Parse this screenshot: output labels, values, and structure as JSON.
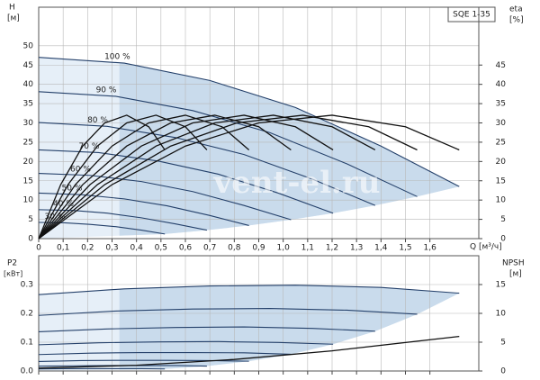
{
  "chart_data": [
    {
      "type": "line",
      "title": "SQE 1-35",
      "x_label": "Q [м³/ч]",
      "y_label": "H",
      "y_unit": "[м]",
      "y2_label": "eta",
      "y2_unit": "[%]",
      "watermark": "vent-el.ru",
      "xlim": [
        0,
        1.8
      ],
      "xticks": [
        0,
        {
          "value": 0.1,
          "label": "0,1"
        },
        {
          "value": 0.2,
          "label": "0,2"
        },
        {
          "value": 0.3,
          "label": "0,3"
        },
        {
          "value": 0.4,
          "label": "0,4"
        },
        {
          "value": 0.5,
          "label": "0,5"
        },
        {
          "value": 0.6,
          "label": "0,6"
        },
        {
          "value": 0.7,
          "label": "0,7"
        },
        {
          "value": 0.8,
          "label": "0,8"
        },
        {
          "value": 0.9,
          "label": "0,9"
        },
        {
          "value": 1,
          "label": "1,0"
        },
        {
          "value": 1.1,
          "label": "1,1"
        },
        {
          "value": 1.2,
          "label": "1,2"
        },
        {
          "value": 1.3,
          "label": "1,3"
        },
        {
          "value": 1.4,
          "label": "1,4"
        },
        {
          "value": 1.5,
          "label": "1,5"
        },
        {
          "value": 1.6,
          "label": "1,6"
        }
      ],
      "ylim": [
        0,
        60
      ],
      "yticks": [
        0,
        5,
        10,
        15,
        20,
        25,
        30,
        35,
        40,
        45,
        50
      ],
      "y2lim": [
        0,
        60
      ],
      "y2ticks": [
        0,
        5,
        10,
        15,
        20,
        25,
        30,
        35,
        40,
        45
      ],
      "grid": true,
      "fill_color": "#c9dbec",
      "fill_light_color": "#e6eff8",
      "series": [
        {
          "name": "100 %",
          "color": "#24406a",
          "x": [
            0,
            0.35,
            0.7,
            1.05,
            1.4,
            1.72
          ],
          "values": [
            47,
            45.5,
            41,
            34,
            24,
            13.5
          ]
        },
        {
          "name": "90 %",
          "color": "#24406a",
          "x": [
            0,
            0.315,
            0.63,
            0.945,
            1.26,
            1.548
          ],
          "values": [
            38.1,
            36.9,
            33.2,
            27.5,
            19.4,
            10.9
          ]
        },
        {
          "name": "80 %",
          "color": "#24406a",
          "x": [
            0,
            0.28,
            0.56,
            0.84,
            1.12,
            1.376
          ],
          "values": [
            30.1,
            29.1,
            26.2,
            21.8,
            15.4,
            8.6
          ]
        },
        {
          "name": "70 %",
          "color": "#24406a",
          "x": [
            0,
            0.245,
            0.49,
            0.735,
            0.98,
            1.204
          ],
          "values": [
            23,
            22.3,
            20.1,
            16.7,
            11.8,
            6.6
          ]
        },
        {
          "name": "60 %",
          "color": "#24406a",
          "x": [
            0,
            0.21,
            0.42,
            0.63,
            0.84,
            1.032
          ],
          "values": [
            16.9,
            16.4,
            14.8,
            12.2,
            8.6,
            4.9
          ]
        },
        {
          "name": "50 %",
          "color": "#24406a",
          "x": [
            0,
            0.175,
            0.35,
            0.525,
            0.7,
            0.86
          ],
          "values": [
            11.8,
            11.4,
            10.3,
            8.5,
            6,
            3.4
          ]
        },
        {
          "name": "40 %",
          "color": "#24406a",
          "x": [
            0,
            0.14,
            0.28,
            0.42,
            0.56,
            0.688
          ],
          "values": [
            7.5,
            7.3,
            6.6,
            5.4,
            3.8,
            2.2
          ]
        },
        {
          "name": "30 %",
          "color": "#24406a",
          "x": [
            0,
            0.105,
            0.21,
            0.315,
            0.42,
            0.516
          ],
          "values": [
            4.2,
            4.1,
            3.7,
            3.1,
            2.2,
            1.2
          ]
        },
        {
          "axis": "y2",
          "color": "#111111",
          "x": [
            0,
            0.3,
            0.6,
            0.9,
            1.2,
            1.5,
            1.72
          ],
          "values": [
            0,
            14,
            24,
            30,
            32,
            29,
            23
          ]
        },
        {
          "axis": "y2",
          "color": "#111111",
          "x": [
            0,
            0.27,
            0.54,
            0.81,
            1.08,
            1.35,
            1.548
          ],
          "values": [
            0,
            14,
            24,
            30,
            32,
            29,
            23
          ]
        },
        {
          "axis": "y2",
          "color": "#111111",
          "x": [
            0,
            0.24,
            0.48,
            0.72,
            0.96,
            1.2,
            1.376
          ],
          "values": [
            0,
            14,
            24,
            30,
            32,
            29,
            23
          ]
        },
        {
          "axis": "y2",
          "color": "#111111",
          "x": [
            0,
            0.21,
            0.42,
            0.63,
            0.84,
            1.05,
            1.204
          ],
          "values": [
            0,
            14,
            24,
            30,
            32,
            29,
            23
          ]
        },
        {
          "axis": "y2",
          "color": "#111111",
          "x": [
            0,
            0.18,
            0.36,
            0.54,
            0.72,
            0.9,
            1.032
          ],
          "values": [
            0,
            14,
            24,
            30,
            32,
            29,
            23
          ]
        },
        {
          "axis": "y2",
          "color": "#111111",
          "x": [
            0,
            0.15,
            0.3,
            0.45,
            0.6,
            0.75,
            0.86
          ],
          "values": [
            0,
            14,
            24,
            30,
            32,
            29,
            23
          ]
        },
        {
          "axis": "y2",
          "color": "#111111",
          "x": [
            0,
            0.12,
            0.24,
            0.36,
            0.48,
            0.6,
            0.688
          ],
          "values": [
            0,
            14,
            24,
            30,
            32,
            29,
            23
          ]
        },
        {
          "axis": "y2",
          "color": "#111111",
          "x": [
            0,
            0.09,
            0.18,
            0.27,
            0.36,
            0.45,
            0.516
          ],
          "values": [
            0,
            14,
            24,
            30,
            32,
            29,
            23
          ]
        }
      ]
    },
    {
      "type": "line",
      "y_label": "P2",
      "y_unit": "[кВт]",
      "y2_label": "NPSH",
      "y2_unit": "[м]",
      "xlim": [
        0,
        1.8
      ],
      "xticks": [
        0,
        0.1,
        0.2,
        0.3,
        0.4,
        0.5,
        0.6,
        0.7,
        0.8,
        0.9,
        1,
        1.1,
        1.2,
        1.3,
        1.4,
        1.5,
        1.6
      ],
      "ylim": [
        0,
        0.4
      ],
      "yticks": [
        {
          "value": 0,
          "label": "0.0"
        },
        0.1,
        0.2,
        0.3
      ],
      "y2lim": [
        0,
        20
      ],
      "y2ticks": [
        0,
        5,
        10,
        15
      ],
      "grid": true,
      "fill_color": "#c9dbec",
      "fill_light_color": "#e6eff8",
      "series": [
        {
          "color": "#24406a",
          "x": [
            0,
            0.35,
            0.7,
            1.05,
            1.4,
            1.72
          ],
          "values": [
            0.265,
            0.285,
            0.295,
            0.298,
            0.29,
            0.27
          ]
        },
        {
          "color": "#24406a",
          "x": [
            0,
            0.315,
            0.63,
            0.945,
            1.26,
            1.548
          ],
          "values": [
            0.193,
            0.208,
            0.215,
            0.217,
            0.211,
            0.197
          ]
        },
        {
          "color": "#24406a",
          "x": [
            0,
            0.28,
            0.56,
            0.84,
            1.12,
            1.376
          ],
          "values": [
            0.136,
            0.146,
            0.151,
            0.153,
            0.148,
            0.138
          ]
        },
        {
          "color": "#24406a",
          "x": [
            0,
            0.245,
            0.49,
            0.735,
            0.98,
            1.204
          ],
          "values": [
            0.091,
            0.098,
            0.101,
            0.102,
            0.099,
            0.093
          ]
        },
        {
          "color": "#24406a",
          "x": [
            0,
            0.21,
            0.42,
            0.63,
            0.84,
            1.032
          ],
          "values": [
            0.057,
            0.062,
            0.064,
            0.064,
            0.063,
            0.058
          ]
        },
        {
          "color": "#24406a",
          "x": [
            0,
            0.175,
            0.35,
            0.525,
            0.7,
            0.86
          ],
          "values": [
            0.033,
            0.036,
            0.037,
            0.037,
            0.036,
            0.034
          ]
        },
        {
          "color": "#24406a",
          "x": [
            0,
            0.14,
            0.28,
            0.42,
            0.56,
            0.688
          ],
          "values": [
            0.017,
            0.018,
            0.019,
            0.019,
            0.019,
            0.017
          ]
        },
        {
          "color": "#24406a",
          "x": [
            0,
            0.105,
            0.21,
            0.315,
            0.42,
            0.516
          ],
          "values": [
            0.007,
            0.008,
            0.008,
            0.008,
            0.008,
            0.007
          ]
        },
        {
          "axis": "y2",
          "color": "#111111",
          "x": [
            0,
            0.4,
            0.8,
            1.2,
            1.72
          ],
          "values": [
            0.5,
            1,
            2,
            3.5,
            6
          ]
        }
      ]
    }
  ]
}
